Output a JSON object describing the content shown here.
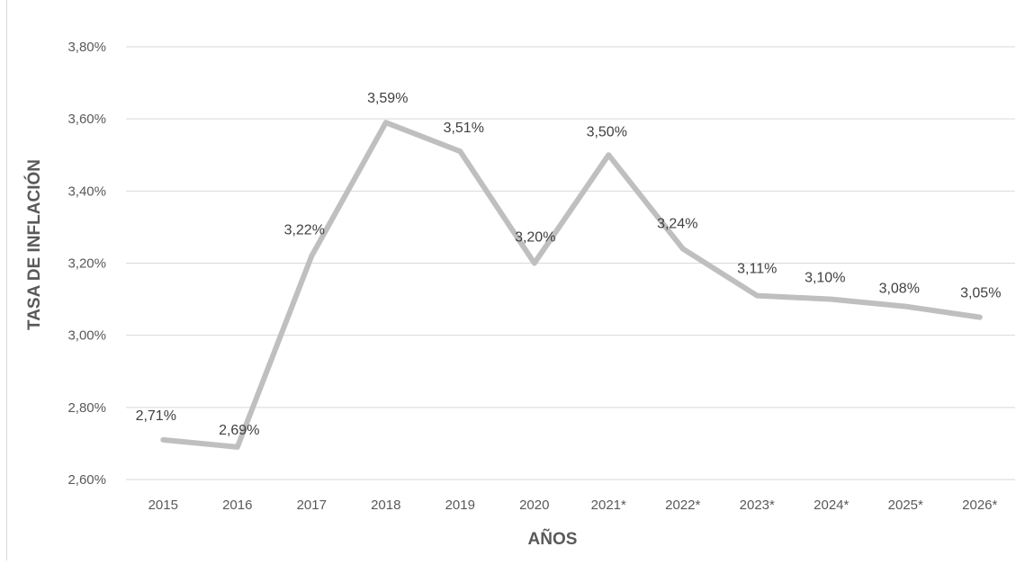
{
  "chart_data": {
    "type": "line",
    "title": "",
    "xlabel": "AÑOS",
    "ylabel": "TASA DE INFLACIÓN",
    "categories": [
      "2015",
      "2016",
      "2017",
      "2018",
      "2019",
      "2020",
      "2021*",
      "2022*",
      "2023*",
      "2024*",
      "2025*",
      "2026*"
    ],
    "series": [
      {
        "values": [
          2.71,
          2.69,
          3.22,
          3.59,
          3.51,
          3.2,
          3.5,
          3.24,
          3.11,
          3.1,
          3.08,
          3.05
        ],
        "labels": [
          "2,71%",
          "2,69%",
          "3,22%",
          "3,59%",
          "3,51%",
          "3,20%",
          "3,50%",
          "3,24%",
          "3,11%",
          "3,10%",
          "3,08%",
          "3,05%"
        ]
      }
    ],
    "ylim": [
      2.6,
      3.8
    ],
    "yticks": [
      2.6,
      2.8,
      3.0,
      3.2,
      3.4,
      3.6,
      3.8
    ],
    "ytick_labels": [
      "2,60%",
      "2,80%",
      "3,00%",
      "3,20%",
      "3,40%",
      "3,60%",
      "3,80%"
    ],
    "grid": true,
    "legend": "none",
    "line_color": "#bfbfbf"
  }
}
